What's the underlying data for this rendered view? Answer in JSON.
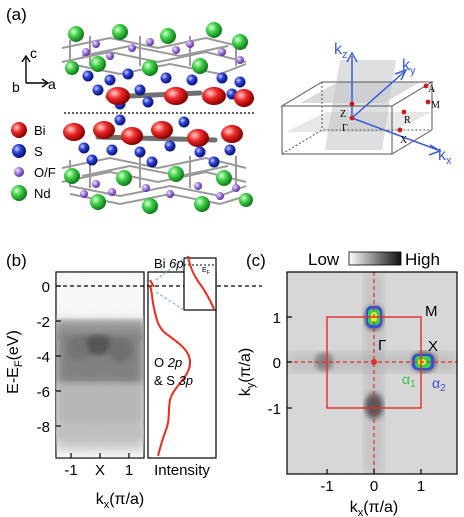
{
  "panel_a": {
    "label": "(a)",
    "axes": {
      "c": "c",
      "b": "b",
      "a": "a"
    },
    "legend": [
      {
        "label": "Bi",
        "color": "#e8202a"
      },
      {
        "label": "S",
        "color": "#2b3fd8"
      },
      {
        "label": "O/F",
        "color": "#a27ce0"
      },
      {
        "label": "Nd",
        "color": "#3fd24a"
      }
    ],
    "bz_labels": {
      "kz": "k",
      "kz_sub": "z",
      "ky": "k",
      "ky_sub": "y",
      "kx": "k",
      "kx_sub": "x",
      "A": "A",
      "M": "M",
      "R": "R",
      "Z": "Z",
      "Gamma": "Γ",
      "X": "X"
    }
  },
  "panel_b": {
    "label": "(b)",
    "ylabel": "E-E",
    "ylabel_sub": "F",
    "ylabel_unit": "(eV)",
    "yticks": [
      "0",
      "-2",
      "-4",
      "-6",
      "-8"
    ],
    "xticks": [
      "-1",
      "X",
      "1"
    ],
    "xlabel": "k",
    "xlabel_sub": "x",
    "xlabel_unit": "(π/a)",
    "intensity_label": "Intensity",
    "bi_label": "Bi ",
    "bi_orbital": "6p",
    "ef_label": "E",
    "ef_sub": "F",
    "o_label": "O ",
    "o_orbital": "2p",
    "s_label": "& S ",
    "s_orbital": "3p",
    "curve_color": "#ee2a1c"
  },
  "panel_c": {
    "label": "(c)",
    "scale_low": "Low",
    "scale_high": "High",
    "yticks": [
      "1",
      "0",
      "-1"
    ],
    "xticks": [
      "-1",
      "0",
      "1"
    ],
    "ylabel": "k",
    "ylabel_sub": "y",
    "ylabel_unit": "(π/a)",
    "xlabel": "k",
    "xlabel_sub": "x",
    "xlabel_unit": "(π/a)",
    "M": "M",
    "Gamma": "Γ",
    "X": "X",
    "alpha1": "α",
    "alpha1_sub": "1",
    "alpha2": "α",
    "alpha2_sub": "2",
    "bz_color": "#e52b2b"
  }
}
